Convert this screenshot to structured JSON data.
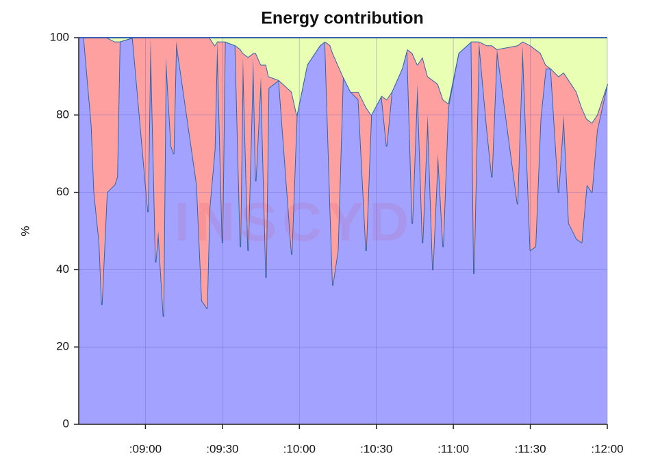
{
  "chart_data": {
    "type": "stacked_area",
    "title": "Energy contribution",
    "y_label": "%",
    "watermark": "INSCYD",
    "x": [
      514,
      516,
      519,
      520,
      522,
      523,
      525,
      528,
      529,
      530,
      535,
      541,
      542,
      544,
      545,
      547,
      548,
      550,
      551,
      552,
      560,
      562,
      564,
      565,
      567,
      568,
      570,
      571,
      575,
      577,
      578,
      580,
      582,
      583,
      585,
      587,
      588,
      592,
      597,
      599,
      603,
      608,
      610,
      612,
      613,
      615,
      617,
      620,
      623,
      626,
      628,
      632,
      634,
      636,
      640,
      642,
      644,
      646,
      648,
      650,
      652,
      654,
      656,
      658,
      662,
      667,
      668,
      670,
      673,
      675,
      677,
      685,
      687,
      690,
      692,
      694,
      696,
      698,
      701,
      703,
      705,
      708,
      710,
      712,
      714,
      716,
      720
    ],
    "series": [
      {
        "color": "#a3a3ff",
        "values": [
          100,
          100,
          77,
          60,
          47,
          31,
          60,
          62,
          64,
          99,
          100,
          55,
          100,
          42,
          50,
          28,
          95,
          72,
          70,
          99,
          62,
          32,
          30,
          56,
          71,
          99,
          47,
          99,
          98,
          46,
          95,
          45,
          95,
          63,
          90,
          38,
          87,
          89,
          44,
          80,
          93,
          98,
          99,
          56,
          36,
          45,
          90,
          86,
          84,
          45,
          80,
          85,
          72,
          86,
          92,
          97,
          52,
          88,
          47,
          80,
          40,
          70,
          46,
          82,
          96,
          99,
          39,
          99,
          77,
          64,
          97,
          57,
          98,
          45,
          46,
          79,
          92,
          92,
          60,
          80,
          52,
          48,
          47,
          62,
          60,
          76,
          88
        ]
      },
      {
        "color": "#ffa0a0",
        "values": [
          0,
          0,
          23,
          40,
          53,
          69,
          40,
          37,
          35,
          0,
          0,
          45,
          0,
          58,
          50,
          72,
          5,
          28,
          30,
          1,
          38,
          68,
          70,
          44,
          27,
          0,
          52,
          0,
          0,
          51,
          1,
          50,
          1,
          33,
          3,
          55,
          3,
          0,
          42,
          0,
          0,
          0,
          0,
          42,
          60,
          48,
          0,
          0,
          2,
          37,
          0,
          0,
          12,
          0,
          0,
          0,
          44,
          5,
          48,
          10,
          49,
          18,
          38,
          1,
          0,
          0,
          60,
          0,
          21,
          34,
          0,
          41,
          1,
          53,
          51,
          17,
          1,
          0,
          30,
          11,
          37,
          38,
          35,
          17,
          18,
          4,
          0
        ]
      },
      {
        "color": "#e9ffb3",
        "values": [
          0,
          0,
          0,
          0,
          0,
          0,
          0,
          1,
          1,
          1,
          0,
          0,
          0,
          0,
          0,
          0,
          0,
          0,
          0,
          0,
          0,
          0,
          0,
          0,
          2,
          1,
          1,
          1,
          2,
          3,
          4,
          5,
          4,
          4,
          7,
          7,
          10,
          11,
          14,
          20,
          7,
          2,
          1,
          2,
          4,
          7,
          10,
          14,
          14,
          18,
          20,
          15,
          16,
          14,
          8,
          3,
          4,
          7,
          5,
          10,
          11,
          12,
          16,
          17,
          4,
          1,
          1,
          1,
          2,
          2,
          3,
          2,
          1,
          2,
          3,
          4,
          7,
          8,
          10,
          9,
          11,
          14,
          18,
          21,
          22,
          20,
          12
        ]
      }
    ],
    "line_color": "#2f64a8",
    "xlim": [
      514,
      720
    ],
    "xticks": [
      {
        "value": 540,
        "label": ":09:00"
      },
      {
        "value": 570,
        "label": ":09:30"
      },
      {
        "value": 600,
        "label": ":10:00"
      },
      {
        "value": 630,
        "label": ":10:30"
      },
      {
        "value": 660,
        "label": ":11:00"
      },
      {
        "value": 690,
        "label": ":11:30"
      },
      {
        "value": 720,
        "label": ":12:00"
      }
    ],
    "ylim": [
      0,
      100
    ],
    "yticks": [
      0,
      20,
      40,
      60,
      80,
      100
    ],
    "grid": true
  }
}
